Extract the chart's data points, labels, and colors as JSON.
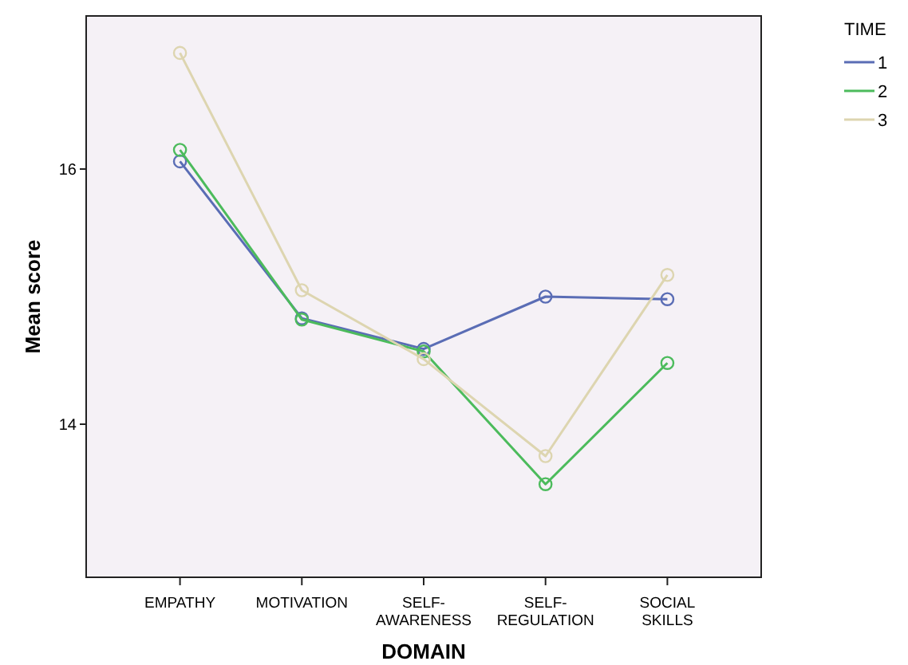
{
  "chart_data": {
    "type": "line",
    "xlabel": "DOMAIN",
    "ylabel": "Mean score",
    "legend_title": "TIME",
    "legend": "top right",
    "marker": "circle",
    "grid": false,
    "categories": [
      "EMPATHY",
      "MOTIVATION",
      "SELF-\nAWARENESS",
      "SELF-\nREGULATION",
      "SOCIAL\nSKILLS"
    ],
    "ylim": [
      12.8,
      17.2
    ],
    "yticks": [
      14,
      16
    ],
    "series": [
      {
        "name": "1",
        "color": "#5a6db5",
        "values": [
          16.06,
          14.83,
          14.59,
          15.0,
          14.98
        ]
      },
      {
        "name": "2",
        "color": "#4cbb5c",
        "values": [
          16.15,
          14.82,
          14.57,
          13.53,
          14.48
        ]
      },
      {
        "name": "3",
        "color": "#ddd5b0",
        "values": [
          16.91,
          15.05,
          14.51,
          13.75,
          15.17
        ]
      }
    ]
  }
}
